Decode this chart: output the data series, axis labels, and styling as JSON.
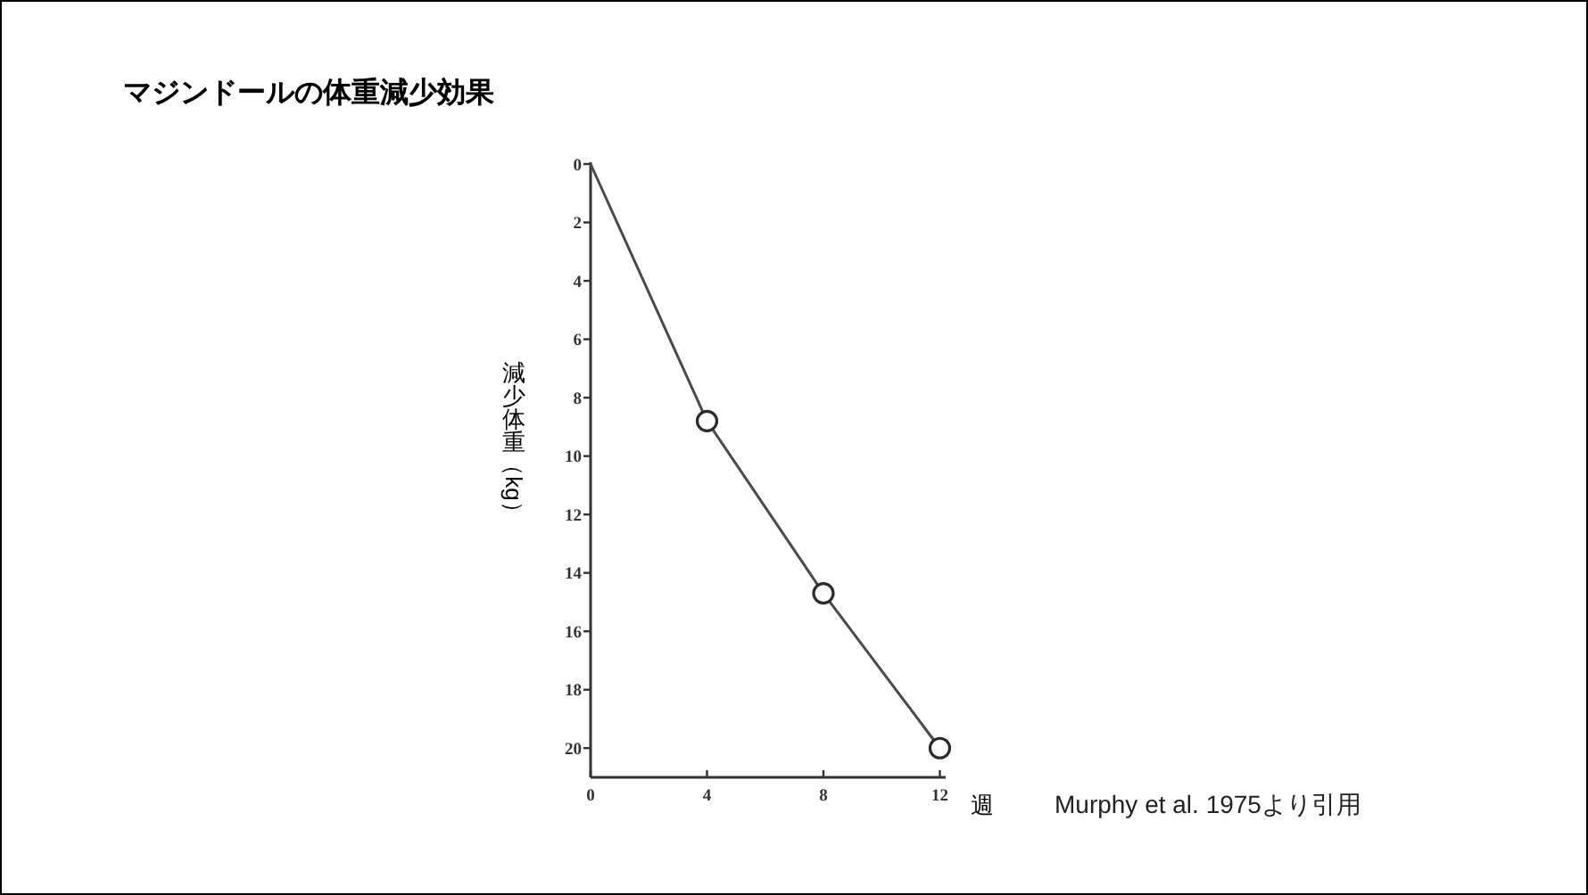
{
  "chart_data": {
    "type": "line",
    "title": "マジンドールの体重減少効果",
    "xlabel": "週",
    "ylabel": "減少体重（kg）",
    "annotations": [
      "Murphy et al. 1975より引用"
    ],
    "series": [
      {
        "x": [
          0,
          4,
          8,
          12
        ],
        "values": [
          0,
          8.8,
          14.7,
          20
        ],
        "color": "#4a4a4a",
        "marker": "none"
      },
      {
        "type": "scatter",
        "x": [
          4,
          8,
          12
        ],
        "values": [
          8.8,
          14.7,
          20
        ],
        "color": "#2b2b2b",
        "marker": "circle"
      }
    ],
    "xlim": [
      0,
      12.2
    ],
    "ylim": [
      21,
      0
    ],
    "xticks": [
      0,
      4,
      8,
      12
    ],
    "yticks": [
      0,
      2,
      4,
      6,
      8,
      10,
      12,
      14,
      16,
      18,
      20
    ]
  }
}
